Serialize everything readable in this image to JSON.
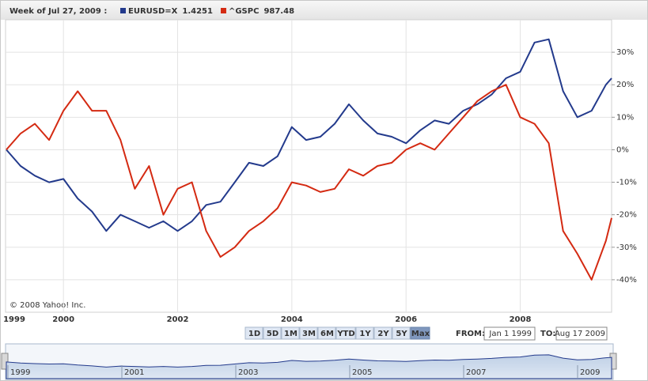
{
  "header": "Week of Jul 27, 2009 :",
  "copyright": "© 2008 Yahoo! Inc.",
  "range_buttons": [
    "1D",
    "5D",
    "1M",
    "3M",
    "6M",
    "YTD",
    "1Y",
    "2Y",
    "5Y",
    "Max"
  ],
  "from_label": "FROM:",
  "from_value": "Jan 1 1999",
  "to_label": "TO:",
  "to_value": "Aug 17 2009",
  "navigator_labels": [
    "1999",
    "2001",
    "2003",
    "2005",
    "2007",
    "2009"
  ],
  "chart_data": {
    "type": "line",
    "x": [
      1999,
      1999.25,
      1999.5,
      1999.75,
      2000,
      2000.25,
      2000.5,
      2000.75,
      2001,
      2001.25,
      2001.5,
      2001.75,
      2002,
      2002.25,
      2002.5,
      2002.75,
      2003,
      2003.25,
      2003.5,
      2003.75,
      2004,
      2004.25,
      2004.5,
      2004.75,
      2005,
      2005.25,
      2005.5,
      2005.75,
      2006,
      2006.25,
      2006.5,
      2006.75,
      2007,
      2007.25,
      2007.5,
      2007.75,
      2008,
      2008.25,
      2008.5,
      2008.75,
      2009,
      2009.25,
      2009.5,
      2009.6
    ],
    "series": [
      {
        "name": "EURUSD=X",
        "last": "1.4251",
        "color": "#233a8c",
        "values": [
          0,
          -5,
          -8,
          -10,
          -9,
          -15,
          -19,
          -25,
          -20,
          -22,
          -24,
          -22,
          -25,
          -22,
          -17,
          -16,
          -10,
          -4,
          -5,
          -2,
          7,
          3,
          4,
          8,
          14,
          9,
          5,
          4,
          2,
          6,
          9,
          8,
          12,
          14,
          17,
          22,
          24,
          33,
          34,
          18,
          10,
          12,
          20,
          22
        ]
      },
      {
        "name": "^GSPC",
        "last": "987.48",
        "color": "#d42a12",
        "values": [
          0,
          5,
          8,
          3,
          12,
          18,
          12,
          12,
          3,
          -12,
          -5,
          -20,
          -12,
          -10,
          -25,
          -33,
          -30,
          -25,
          -22,
          -18,
          -10,
          -11,
          -13,
          -12,
          -6,
          -8,
          -5,
          -4,
          0,
          2,
          0,
          5,
          10,
          15,
          18,
          20,
          10,
          8,
          2,
          -25,
          -32,
          -40,
          -28,
          -21
        ]
      }
    ],
    "xlim": [
      1999,
      2009.6
    ],
    "xticks": [
      1999,
      2000,
      2002,
      2004,
      2006,
      2008
    ],
    "ylim": [
      -50,
      40
    ],
    "yticks": [
      {
        "value": 30,
        "label": "30%"
      },
      {
        "value": 20,
        "label": "20%"
      },
      {
        "value": 10,
        "label": "10%"
      },
      {
        "value": 0,
        "label": "0%"
      },
      {
        "value": -10,
        "label": "-10%"
      },
      {
        "value": -20,
        "label": "-20%"
      },
      {
        "value": -30,
        "label": "-30%"
      },
      {
        "value": -40,
        "label": "-40%"
      }
    ],
    "grid": true
  }
}
